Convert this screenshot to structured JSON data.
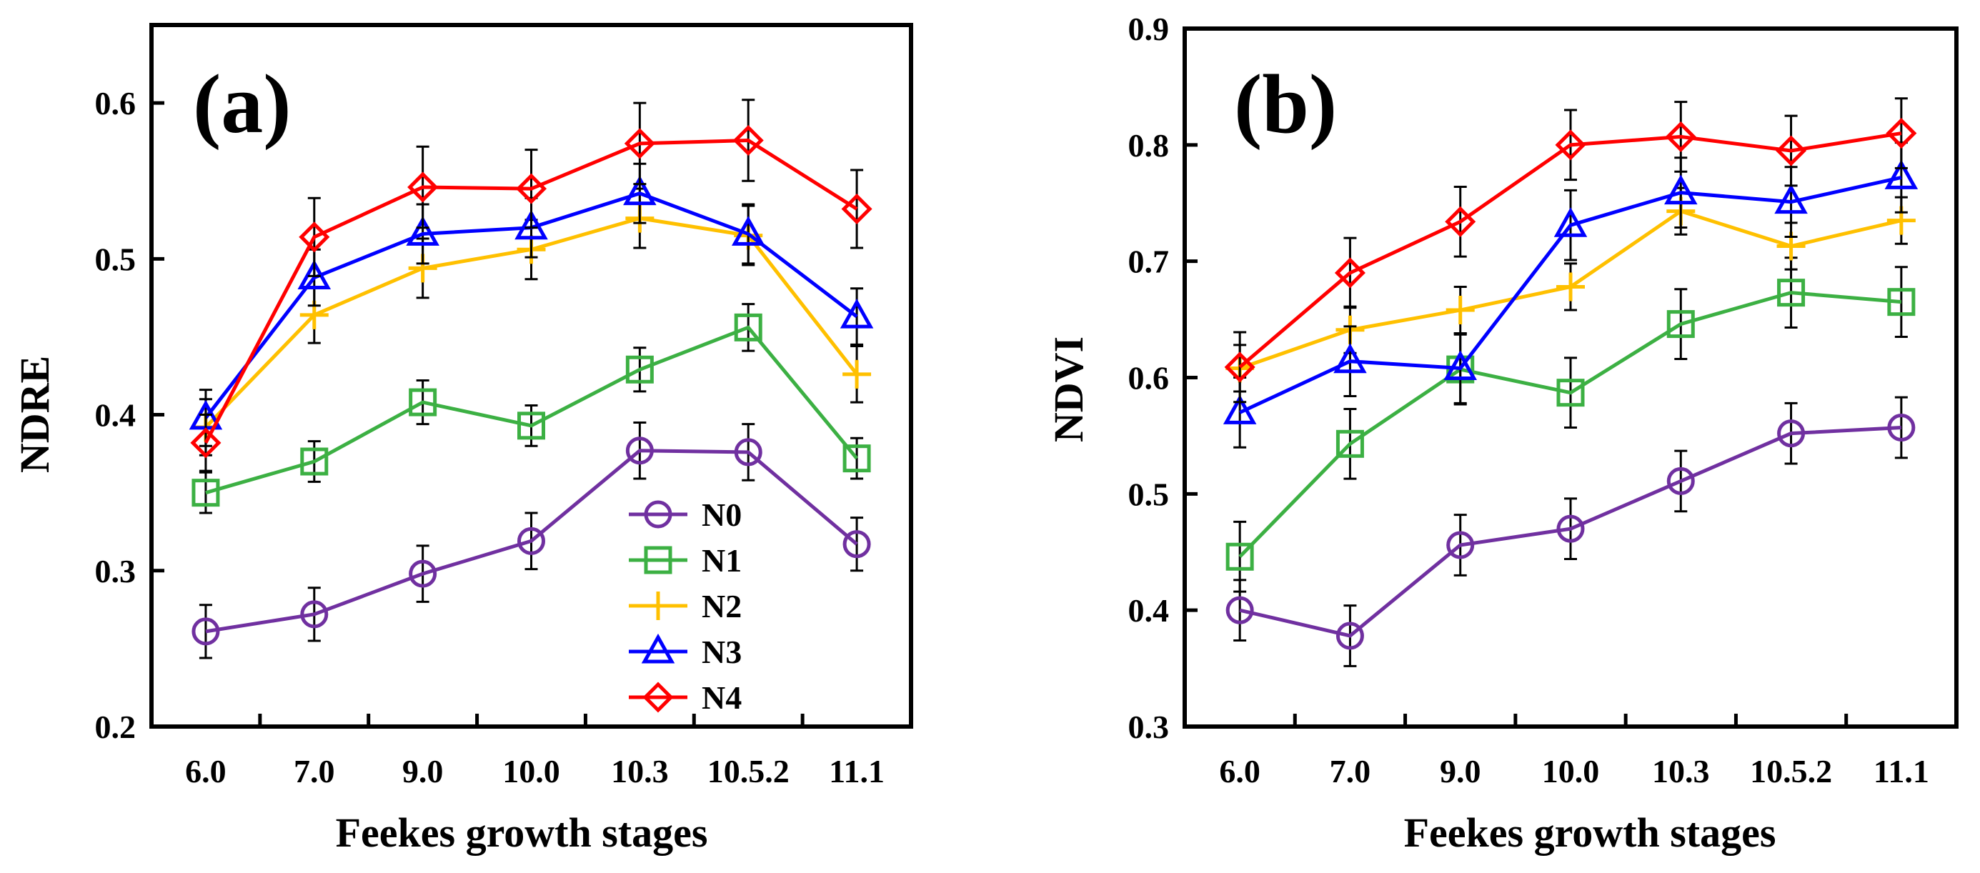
{
  "chart_data": [
    {
      "type": "line",
      "panel_label": "(a)",
      "xlabel": "Feekes growth stages",
      "ylabel": "NDRE",
      "categories": [
        "6.0",
        "7.0",
        "9.0",
        "10.0",
        "10.3",
        "10.5.2",
        "11.1"
      ],
      "ylim": [
        0.2,
        0.65
      ],
      "yticks": [
        0.2,
        0.3,
        0.4,
        0.5,
        0.6
      ],
      "ytick_labels": [
        "0.2",
        "0.3",
        "0.4",
        "0.5",
        "0.6"
      ],
      "legend": {
        "position": "lower-center",
        "entries": [
          "N0",
          "N1",
          "N2",
          "N3",
          "N4"
        ]
      },
      "series": [
        {
          "name": "N0",
          "color": "#7030a0",
          "marker": "circle",
          "values": [
            0.261,
            0.272,
            0.298,
            0.319,
            0.377,
            0.376,
            0.317
          ],
          "errors": [
            0.017,
            0.017,
            0.018,
            0.018,
            0.018,
            0.018,
            0.017
          ]
        },
        {
          "name": "N1",
          "color": "#3cb043",
          "marker": "square",
          "values": [
            0.35,
            0.37,
            0.408,
            0.393,
            0.429,
            0.456,
            0.372
          ],
          "errors": [
            0.013,
            0.013,
            0.014,
            0.013,
            0.014,
            0.015,
            0.013
          ]
        },
        {
          "name": "N2",
          "color": "#ffc000",
          "marker": "plus",
          "values": [
            0.392,
            0.464,
            0.494,
            0.506,
            0.526,
            0.515,
            0.426
          ],
          "errors": [
            0.018,
            0.018,
            0.019,
            0.019,
            0.019,
            0.019,
            0.018
          ]
        },
        {
          "name": "N3",
          "color": "#0000ff",
          "marker": "triangle",
          "values": [
            0.398,
            0.488,
            0.516,
            0.52,
            0.542,
            0.516,
            0.463
          ],
          "errors": [
            0.018,
            0.018,
            0.019,
            0.019,
            0.019,
            0.019,
            0.018
          ]
        },
        {
          "name": "N4",
          "color": "#ff0000",
          "marker": "diamond",
          "values": [
            0.382,
            0.514,
            0.546,
            0.545,
            0.574,
            0.576,
            0.532
          ],
          "errors": [
            0.018,
            0.025,
            0.026,
            0.025,
            0.026,
            0.026,
            0.025
          ]
        }
      ]
    },
    {
      "type": "line",
      "panel_label": "(b)",
      "xlabel": "Feekes growth stages",
      "ylabel": "NDVI",
      "categories": [
        "6.0",
        "7.0",
        "9.0",
        "10.0",
        "10.3",
        "10.5.2",
        "11.1"
      ],
      "ylim": [
        0.3,
        0.9
      ],
      "yticks": [
        0.3,
        0.4,
        0.5,
        0.6,
        0.7,
        0.8,
        0.9
      ],
      "ytick_labels": [
        "0.3",
        "0.4",
        "0.5",
        "0.6",
        "0.7",
        "0.8",
        "0.9"
      ],
      "series": [
        {
          "name": "N0",
          "color": "#7030a0",
          "marker": "circle",
          "values": [
            0.4,
            0.378,
            0.456,
            0.47,
            0.511,
            0.552,
            0.557
          ],
          "errors": [
            0.026,
            0.026,
            0.026,
            0.026,
            0.026,
            0.026,
            0.026
          ]
        },
        {
          "name": "N1",
          "color": "#3cb043",
          "marker": "square",
          "values": [
            0.446,
            0.543,
            0.607,
            0.587,
            0.646,
            0.673,
            0.665
          ],
          "errors": [
            0.03,
            0.03,
            0.03,
            0.03,
            0.03,
            0.03,
            0.03
          ]
        },
        {
          "name": "N2",
          "color": "#ffc000",
          "marker": "plus",
          "values": [
            0.608,
            0.641,
            0.658,
            0.678,
            0.743,
            0.713,
            0.735
          ],
          "errors": [
            0.02,
            0.02,
            0.02,
            0.02,
            0.02,
            0.02,
            0.02
          ]
        },
        {
          "name": "N3",
          "color": "#0000ff",
          "marker": "triangle",
          "values": [
            0.57,
            0.614,
            0.608,
            0.731,
            0.759,
            0.751,
            0.772
          ],
          "errors": [
            0.03,
            0.03,
            0.03,
            0.03,
            0.03,
            0.03,
            0.03
          ]
        },
        {
          "name": "N4",
          "color": "#ff0000",
          "marker": "diamond",
          "values": [
            0.609,
            0.69,
            0.734,
            0.8,
            0.807,
            0.795,
            0.81
          ],
          "errors": [
            0.03,
            0.03,
            0.03,
            0.03,
            0.03,
            0.03,
            0.03
          ]
        }
      ]
    }
  ]
}
